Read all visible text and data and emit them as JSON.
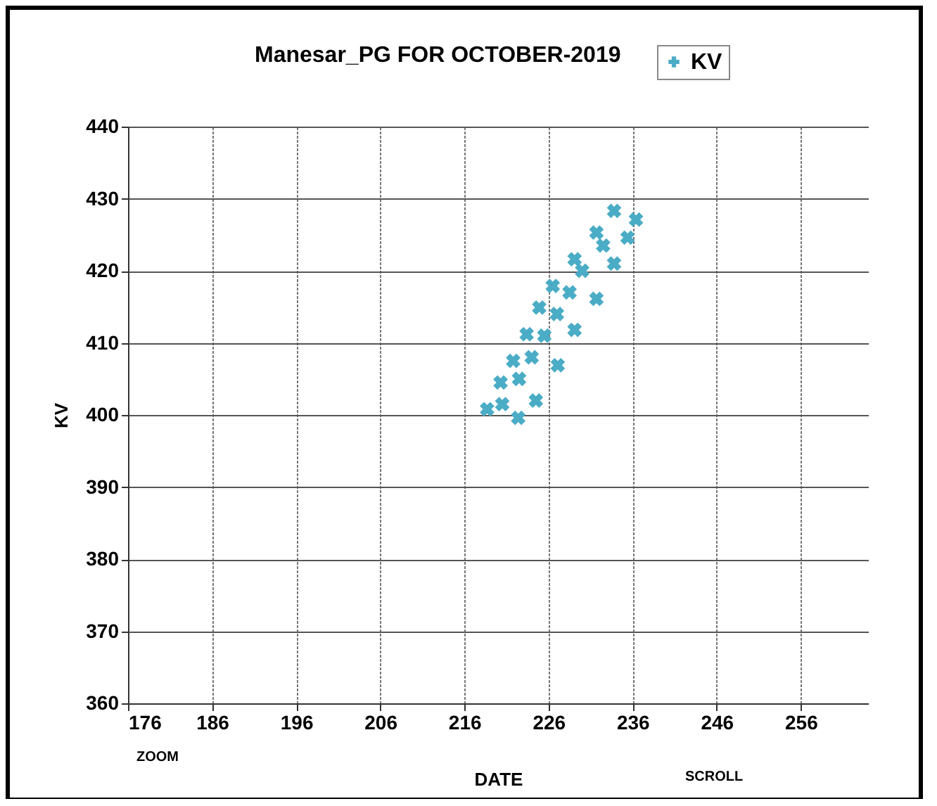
{
  "chart_data": {
    "type": "scatter",
    "title": "Manesar_PG FOR OCTOBER-2019",
    "xlabel": "DATE",
    "ylabel": "KV",
    "annotations": [
      "ZOOM",
      "SCROLL"
    ],
    "xlim": [
      176,
      264
    ],
    "xticks": [
      176,
      186,
      196,
      206,
      216,
      226,
      236,
      246,
      256
    ],
    "ylim": [
      360,
      440
    ],
    "yticks": [
      360,
      370,
      380,
      390,
      400,
      410,
      420,
      430,
      440
    ],
    "grid": true,
    "legend": "top right",
    "marker": "cross",
    "series": [
      {
        "name": "KV",
        "color": "#4bacc6",
        "x": [
          218.7,
          220.3,
          221.8,
          223.4,
          224.9,
          226.5,
          229.1,
          231.7,
          233.8,
          222.4,
          224.5,
          227.1,
          229.1,
          231.7,
          233.8,
          235.4,
          236.4,
          220.5,
          222.5,
          224,
          225.5,
          227,
          228.5,
          230,
          232.5
        ],
        "values": [
          400.8,
          404.5,
          407.5,
          411.2,
          414.9,
          417.9,
          421.6,
          425.3,
          428.3,
          399.6,
          402,
          406.9,
          411.8,
          416.1,
          421,
          424.6,
          427.1,
          401.5,
          405,
          408,
          411,
          414,
          417,
          420,
          423.5
        ]
      }
    ]
  }
}
